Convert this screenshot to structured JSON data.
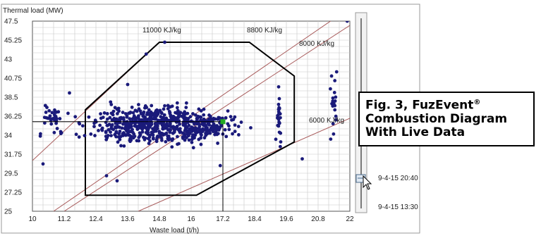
{
  "chart_data": {
    "type": "scatter",
    "ylabel": "Thermal load (MW)",
    "xlabel": "Waste load (t/h)",
    "xlim": [
      10,
      22
    ],
    "ylim": [
      25,
      47.5
    ],
    "xticks": [
      "10",
      "11.2",
      "12.4",
      "13.6",
      "14.8",
      "16",
      "17.2",
      "18.4",
      "19.6",
      "20.8",
      "22"
    ],
    "yticks": [
      "25",
      "27.25",
      "29.5",
      "31.75",
      "34",
      "36.25",
      "38.5",
      "40.75",
      "43",
      "45.25",
      "47.5"
    ],
    "grid": true,
    "point_color": "#1a1a7a",
    "operating_envelope": [
      [
        12.0,
        26.9
      ],
      [
        12.0,
        37.0
      ],
      [
        14.8,
        45.0
      ],
      [
        18.2,
        45.0
      ],
      [
        19.9,
        41.0
      ],
      [
        19.9,
        33.2
      ],
      [
        16.2,
        26.9
      ]
    ],
    "iso_lines": [
      {
        "label": "11000 KJ/kg",
        "from": [
          10.0,
          31.0
        ],
        "to": [
          14.8,
          45.0
        ]
      },
      {
        "label": "8800 KJ/kg",
        "from": [
          10.8,
          25.0
        ],
        "to": [
          21.5,
          48.0
        ]
      },
      {
        "label": "8000 KJ/kg",
        "from": [
          11.2,
          25.0
        ],
        "to": [
          22.0,
          47.0
        ]
      },
      {
        "label": "6000 KJ/kg",
        "from": [
          14.0,
          25.0
        ],
        "to": [
          22.0,
          36.0
        ]
      }
    ],
    "current_point": {
      "x": 17.2,
      "y": 35.6,
      "color": "#22aa22"
    },
    "clusters": [
      {
        "cx": 14.6,
        "cy": 35.2,
        "sx": 1.6,
        "sy": 1.5,
        "n": 560
      },
      {
        "cx": 16.6,
        "cy": 35.0,
        "sx": 0.9,
        "sy": 1.0,
        "n": 110
      },
      {
        "cx": 10.8,
        "cy": 36.0,
        "sx": 0.4,
        "sy": 1.5,
        "n": 35
      },
      {
        "cx": 19.3,
        "cy": 36.0,
        "sx": 0.08,
        "sy": 1.8,
        "n": 25
      },
      {
        "cx": 21.4,
        "cy": 37.5,
        "sx": 0.1,
        "sy": 2.2,
        "n": 18
      }
    ],
    "outliers": [
      [
        14.3,
        43.6
      ],
      [
        15.0,
        45.0
      ],
      [
        21.9,
        47.5
      ],
      [
        21.5,
        41.5
      ],
      [
        12.8,
        29.2
      ],
      [
        13.2,
        28.6
      ],
      [
        20.2,
        31.2
      ],
      [
        10.4,
        30.6
      ],
      [
        17.1,
        30.4
      ],
      [
        13.6,
        40.0
      ],
      [
        11.4,
        39.0
      ]
    ]
  },
  "caption": {
    "line1": "Fig. 3, FuzEvent",
    "registered": "®",
    "line2": "Combustion Diagram",
    "line3": "With Live Data"
  },
  "time_labels": {
    "upper": "9-4-15 20:40",
    "lower": "9-4-15 13:30"
  },
  "colors": {
    "grid": "#c8c8c8",
    "envelope": "#000000",
    "iso_line": "#a85a5a",
    "crosshair": "#000000"
  }
}
